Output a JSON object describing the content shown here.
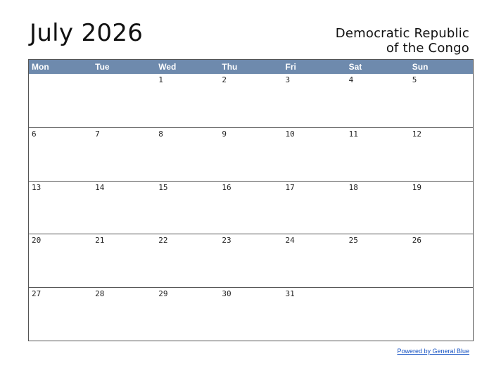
{
  "title": "July 2026",
  "country": {
    "line1": "Democratic Republic",
    "line2": "of the Congo"
  },
  "weekdays": [
    "Mon",
    "Tue",
    "Wed",
    "Thu",
    "Fri",
    "Sat",
    "Sun"
  ],
  "weeks": [
    [
      "",
      "",
      "1",
      "2",
      "3",
      "4",
      "5"
    ],
    [
      "6",
      "7",
      "8",
      "9",
      "10",
      "11",
      "12"
    ],
    [
      "13",
      "14",
      "15",
      "16",
      "17",
      "18",
      "19"
    ],
    [
      "20",
      "21",
      "22",
      "23",
      "24",
      "25",
      "26"
    ],
    [
      "27",
      "28",
      "29",
      "30",
      "31",
      "",
      ""
    ]
  ],
  "footer": {
    "link_text": "Powered by General Blue"
  },
  "colors": {
    "header_bg": "#6e8aad",
    "link": "#1a55c4"
  }
}
